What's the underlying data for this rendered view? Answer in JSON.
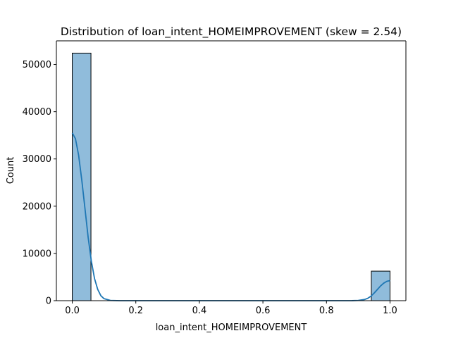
{
  "chart_data": {
    "type": "histogram",
    "title": "Distribution of loan_intent_HOMEIMPROVEMENT (skew = 2.54)",
    "xlabel": "loan_intent_HOMEIMPROVEMENT",
    "ylabel": "Count",
    "xlim": [
      -0.05,
      1.05
    ],
    "ylim": [
      0,
      55000
    ],
    "xticks": [
      0.0,
      0.2,
      0.4,
      0.6,
      0.8,
      1.0
    ],
    "xtick_labels": [
      "0.0",
      "0.2",
      "0.4",
      "0.6",
      "0.8",
      "1.0"
    ],
    "yticks": [
      0,
      10000,
      20000,
      30000,
      40000,
      50000
    ],
    "ytick_labels": [
      "0",
      "10000",
      "20000",
      "30000",
      "40000",
      "50000"
    ],
    "bins": [
      {
        "x0": 0.0,
        "x1": 0.0588,
        "count": 52400
      },
      {
        "x0": 0.9412,
        "x1": 1.0,
        "count": 6250
      }
    ],
    "kde": {
      "x": [
        0.0,
        0.01,
        0.02,
        0.03,
        0.04,
        0.05,
        0.06,
        0.07,
        0.08,
        0.09,
        0.1,
        0.12,
        0.15,
        0.2,
        0.3,
        0.5,
        0.7,
        0.85,
        0.88,
        0.9,
        0.92,
        0.93,
        0.94,
        0.95,
        0.96,
        0.97,
        0.98,
        0.99,
        1.0
      ],
      "y": [
        35500,
        34300,
        30800,
        25500,
        19500,
        13400,
        8400,
        4700,
        2400,
        1050,
        420,
        60,
        5,
        0,
        0,
        0,
        0,
        0,
        10,
        60,
        250,
        500,
        950,
        1600,
        2350,
        3100,
        3700,
        4100,
        4250
      ]
    },
    "grid": false,
    "legend": "none",
    "colors": {
      "bar_fill": "#90bcdb",
      "bar_edge": "#000000",
      "kde_line": "#1f77b4",
      "axis": "#000000"
    }
  }
}
